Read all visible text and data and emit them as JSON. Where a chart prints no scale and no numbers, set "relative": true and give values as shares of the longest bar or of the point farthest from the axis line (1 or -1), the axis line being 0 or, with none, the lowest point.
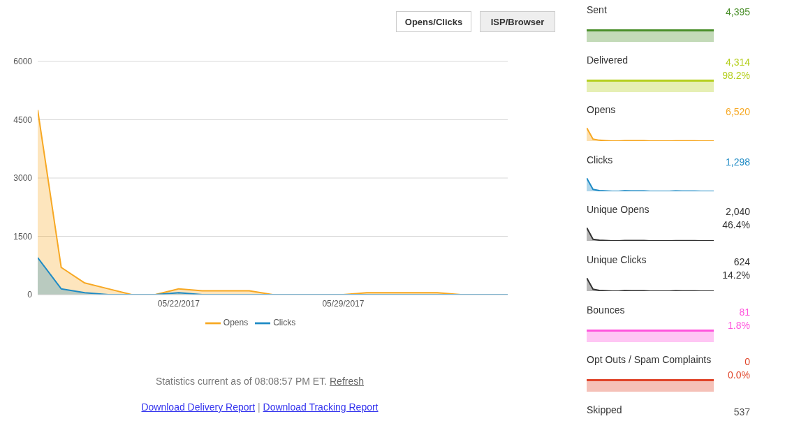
{
  "chart_data": [
    {
      "type": "area",
      "x": [
        "2017-05-16",
        "2017-05-17",
        "2017-05-18",
        "2017-05-19",
        "2017-05-20",
        "2017-05-21",
        "2017-05-22",
        "2017-05-23",
        "2017-05-24",
        "2017-05-25",
        "2017-05-26",
        "2017-05-27",
        "2017-05-28",
        "2017-05-29",
        "2017-05-30",
        "2017-05-31",
        "2017-06-01",
        "2017-06-02",
        "2017-06-03",
        "2017-06-04",
        "2017-06-05"
      ],
      "series": [
        {
          "name": "Opens",
          "color": "#f7a823",
          "values": [
            4750,
            700,
            300,
            150,
            0,
            0,
            150,
            100,
            100,
            100,
            0,
            0,
            0,
            0,
            50,
            50,
            50,
            50,
            0,
            0,
            0
          ]
        },
        {
          "name": "Clicks",
          "color": "#1f8bc5",
          "values": [
            950,
            150,
            50,
            0,
            0,
            0,
            50,
            0,
            0,
            0,
            0,
            0,
            0,
            0,
            0,
            0,
            0,
            0,
            0,
            0,
            0
          ]
        }
      ],
      "xlim": [
        "2017-05-16",
        "2017-06-05"
      ],
      "xticks": [
        {
          "value": "2017-05-22",
          "label": "05/22/2017"
        },
        {
          "value": "2017-05-29",
          "label": "05/29/2017"
        }
      ],
      "ylim": [
        0,
        6000
      ],
      "yticks": [
        0,
        1500,
        3000,
        4500,
        6000
      ],
      "grid": "y",
      "legend": "bottom",
      "annotations": [
        "Opens/Clicks",
        "ISP/Browser",
        "Statistics current as of 08:08:57 PM ET.",
        "Refresh",
        "Download Delivery Report",
        "|",
        "Download Tracking Report"
      ]
    },
    {
      "type": "other",
      "title": "Sent",
      "color": "#4a8f2a",
      "annotations": [
        "4,395"
      ]
    },
    {
      "type": "other",
      "title": "Delivered",
      "color": "#b5cf1e",
      "annotations": [
        "4,314",
        "98.2%"
      ]
    },
    {
      "type": "area",
      "title": "Opens",
      "relative": true,
      "categories": [
        null,
        null,
        null,
        null,
        null,
        null,
        null,
        null,
        null,
        null,
        null,
        null,
        null,
        null,
        null,
        null,
        null,
        null,
        null,
        null,
        null
      ],
      "series": [
        {
          "color": "#f7a823",
          "values": [
            1,
            0.15,
            0.06,
            0.03,
            0,
            0,
            0.03,
            0.02,
            0.02,
            0.02,
            0,
            0,
            0,
            0,
            0.01,
            0.01,
            0.01,
            0.01,
            0,
            0,
            0
          ]
        }
      ],
      "annotations": [
        "6,520"
      ]
    },
    {
      "type": "area",
      "title": "Clicks",
      "relative": true,
      "categories": [
        null,
        null,
        null,
        null,
        null,
        null,
        null,
        null,
        null,
        null,
        null,
        null,
        null,
        null,
        null,
        null,
        null,
        null,
        null,
        null,
        null
      ],
      "series": [
        {
          "color": "#1f8bc5",
          "values": [
            1,
            0.14,
            0.05,
            0.02,
            0,
            0,
            0.04,
            0.02,
            0.02,
            0.02,
            0,
            0,
            0,
            0,
            0.02,
            0.01,
            0.01,
            0.01,
            0,
            0,
            0
          ]
        }
      ],
      "annotations": [
        "1,298"
      ]
    },
    {
      "type": "area",
      "title": "Unique Opens",
      "relative": true,
      "categories": [
        null,
        null,
        null,
        null,
        null,
        null,
        null,
        null,
        null,
        null,
        null,
        null,
        null,
        null,
        null,
        null,
        null,
        null,
        null,
        null,
        null
      ],
      "series": [
        {
          "color": "#333333",
          "values": [
            1,
            0.12,
            0.05,
            0.03,
            0,
            0,
            0.03,
            0.02,
            0.02,
            0.02,
            0,
            0,
            0,
            0,
            0.01,
            0.01,
            0.01,
            0.01,
            0,
            0,
            0
          ]
        }
      ],
      "annotations": [
        "2,040",
        "46.4%"
      ]
    },
    {
      "type": "area",
      "title": "Unique Clicks",
      "relative": true,
      "categories": [
        null,
        null,
        null,
        null,
        null,
        null,
        null,
        null,
        null,
        null,
        null,
        null,
        null,
        null,
        null,
        null,
        null,
        null,
        null,
        null,
        null
      ],
      "series": [
        {
          "color": "#333333",
          "values": [
            1,
            0.14,
            0.05,
            0.02,
            0,
            0,
            0.04,
            0.02,
            0.02,
            0.02,
            0,
            0,
            0,
            0,
            0.02,
            0.01,
            0.01,
            0.01,
            0,
            0,
            0
          ]
        }
      ],
      "annotations": [
        "624",
        "14.2%"
      ]
    },
    {
      "type": "other",
      "title": "Bounces",
      "color": "#ff55dd",
      "annotations": [
        "81",
        "1.8%"
      ]
    },
    {
      "type": "other",
      "title": "Opt Outs / Spam Complaints",
      "color": "#e0452a",
      "annotations": [
        "0",
        "0.0%"
      ]
    },
    {
      "type": "other",
      "title": "Skipped",
      "annotations": [
        "537"
      ]
    }
  ]
}
